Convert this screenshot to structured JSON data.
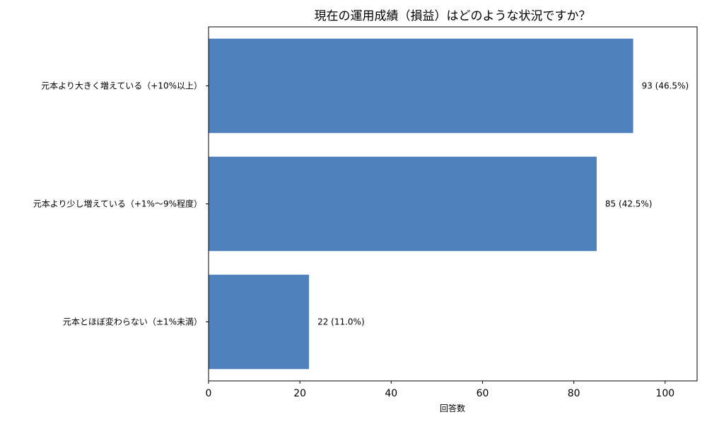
{
  "chart_data": {
    "type": "bar",
    "orientation": "horizontal",
    "title": "現在の運用成績（損益）はどのような状況ですか？",
    "xlabel": "回答数",
    "ylabel": "",
    "categories": [
      "元本より大きく増えている（+10%以上）",
      "元本より少し増えている（+1%〜9%程度）",
      "元本とほぼ変わらない（±1%未満）"
    ],
    "values": [
      93,
      85,
      22
    ],
    "data_labels": [
      "93 (46.5%)",
      "85 (42.5%)",
      "22 (11.0%)"
    ],
    "xlim": [
      0,
      107
    ],
    "xticks": [
      0,
      20,
      40,
      60,
      80,
      100
    ],
    "grid": false,
    "bar_color": "#4f81bd"
  }
}
